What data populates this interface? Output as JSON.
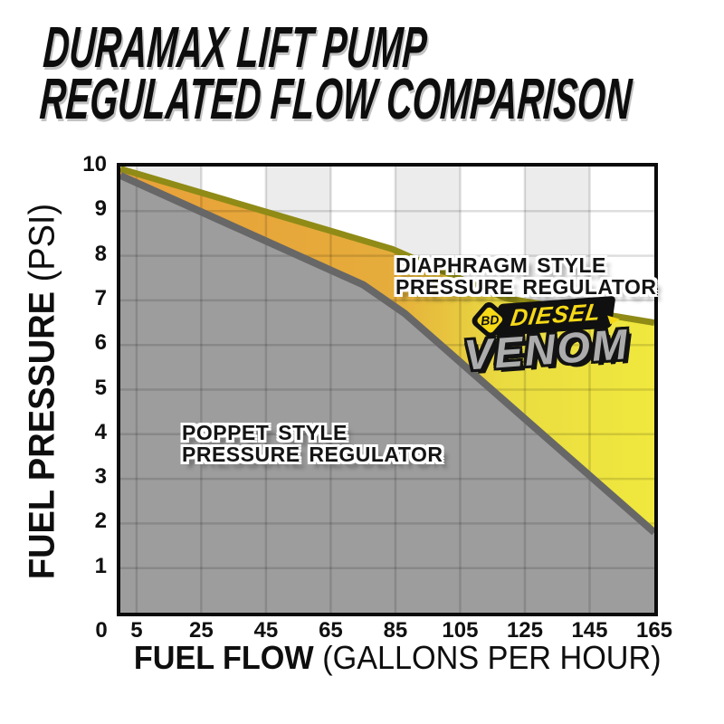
{
  "page_title": {
    "line1": "DURAMAX LIFT PUMP",
    "line2": "REGULATED FLOW COMPARISON"
  },
  "axes": {
    "x_title_bold": "FUEL FLOW",
    "x_title_units": "(GALLONS PER HOUR)",
    "y_title_bold": "FUEL PRESSURE",
    "y_title_units": "(PSI)"
  },
  "series_labels": {
    "diaphragm": {
      "line1": "DIAPHRAGM STYLE",
      "line2": "PRESSURE REGULATOR"
    },
    "poppet": {
      "line1": "POPPET STYLE",
      "line2": "PRESSURE REGULATOR"
    }
  },
  "logo": {
    "brand_prefix": "BD",
    "brand_name": "DIESEL",
    "product_name": "VENOM"
  },
  "chart_data": {
    "type": "area",
    "title": "DURAMAX LIFT PUMP REGULATED FLOW COMPARISON",
    "xlabel": "FUEL FLOW (GALLONS PER HOUR)",
    "ylabel": "FUEL PRESSURE (PSI)",
    "xlim": [
      0,
      165
    ],
    "ylim": [
      0,
      10
    ],
    "x_ticks": [
      5,
      25,
      45,
      65,
      85,
      105,
      125,
      145,
      165
    ],
    "origin_label": "0",
    "y_ticks": [
      1,
      2,
      3,
      4,
      5,
      6,
      7,
      8,
      9,
      10
    ],
    "grid": true,
    "grid_color": "rgba(0,0,0,0.13)",
    "band_color": "#ECECEC",
    "band_pairs_from_ticks": [
      0,
      2,
      4,
      6
    ],
    "series": [
      {
        "name": "DIAPHRAGM STYLE PRESSURE REGULATOR",
        "points": [
          [
            0,
            9.95
          ],
          [
            84,
            8.15
          ],
          [
            119,
            7.05
          ],
          [
            165,
            6.5
          ]
        ],
        "stroke": "#8F8B16",
        "stroke_width": 7,
        "fill_gradient": [
          {
            "offset": 0,
            "color": "#E9A139"
          },
          {
            "offset": 0.5,
            "color": "#E5AC3B"
          },
          {
            "offset": 0.72,
            "color": "#EADC41"
          },
          {
            "offset": 1,
            "color": "#F0E83E"
          }
        ]
      },
      {
        "name": "POPPET STYLE PRESSURE REGULATOR",
        "points": [
          [
            0,
            9.8
          ],
          [
            75,
            7.35
          ],
          [
            88,
            6.7
          ],
          [
            165,
            1.8
          ]
        ],
        "stroke": "#676767",
        "stroke_width": 8,
        "fill": "#9D9D9D"
      }
    ]
  }
}
